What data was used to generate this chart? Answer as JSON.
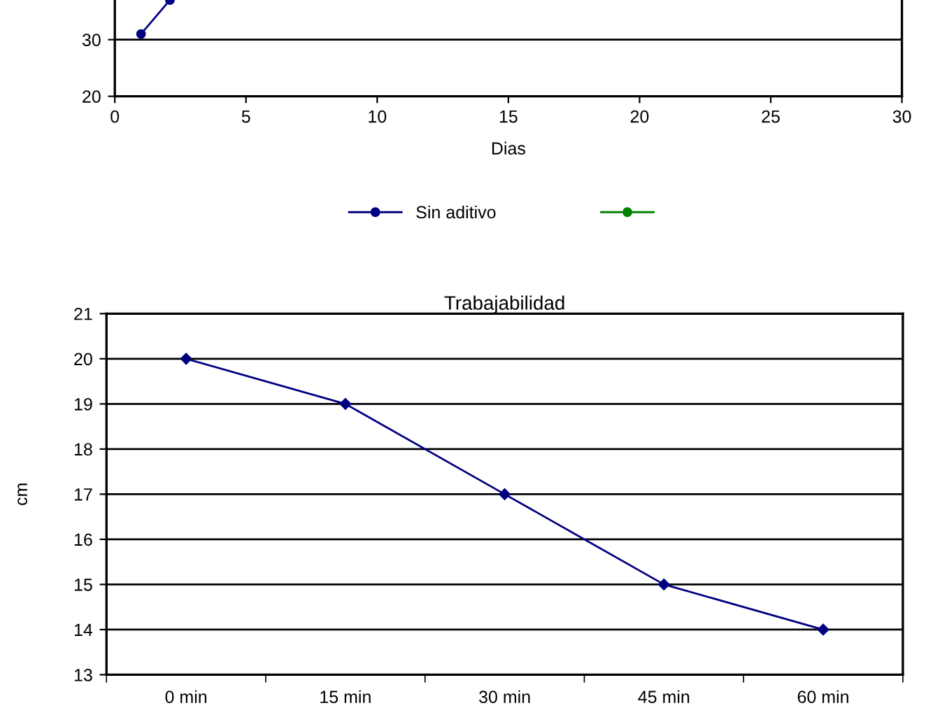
{
  "chart_data": [
    {
      "type": "line",
      "xlabel": "Dias",
      "x": [
        1,
        2.1
      ],
      "xlim": [
        0,
        30
      ],
      "xticks": [
        0,
        5,
        10,
        15,
        20,
        25,
        30
      ],
      "ylim": [
        20,
        37
      ],
      "yticks": [
        20,
        30
      ],
      "grid": "y",
      "legend": "bottom",
      "marker": "circle",
      "series": [
        {
          "name": "Sin aditivo",
          "color": "#000080",
          "values": [
            31,
            37
          ]
        },
        {
          "color": "#008000",
          "values": [
            null,
            null
          ]
        }
      ]
    },
    {
      "type": "line",
      "title": "Trabajabilidad",
      "ylabel": "cm",
      "categories": [
        "0 min",
        "15 min",
        "30 min",
        "45 min",
        "60 min"
      ],
      "ylim": [
        13,
        21
      ],
      "yticks": [
        13,
        14,
        15,
        16,
        17,
        18,
        19,
        20,
        21
      ],
      "grid": "y",
      "legend": false,
      "marker": "diamond",
      "series": [
        {
          "color": "#000080",
          "values": [
            20,
            19,
            17,
            15,
            14
          ]
        }
      ]
    }
  ]
}
